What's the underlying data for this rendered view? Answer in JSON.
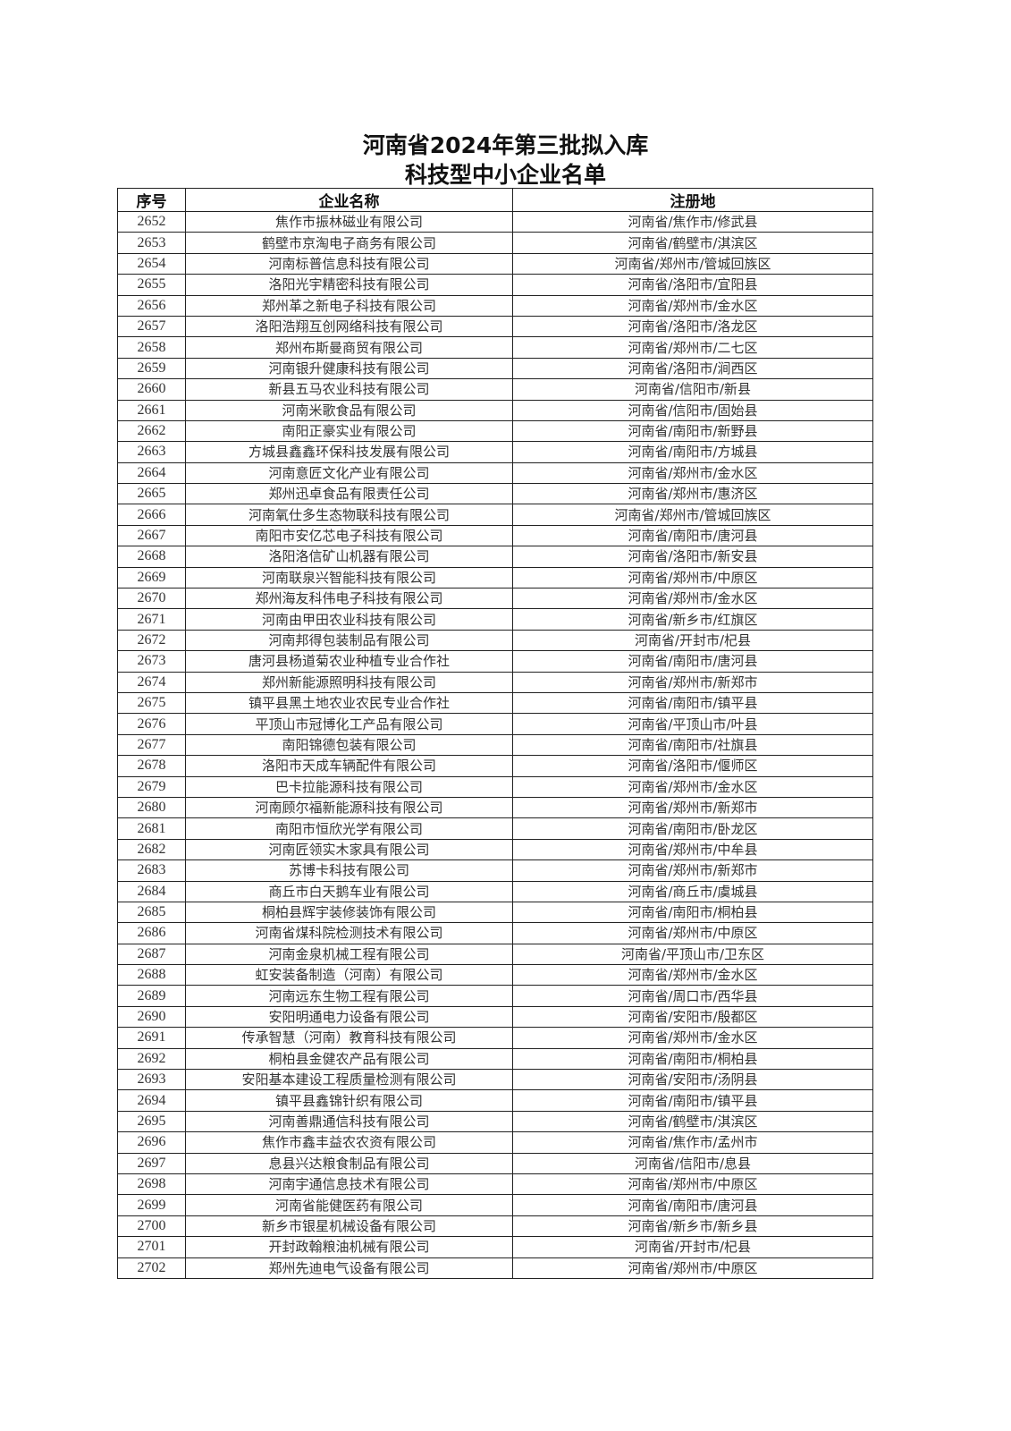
{
  "title": {
    "line1": "河南省2024年第三批拟入库",
    "line2": "科技型中小企业名单"
  },
  "table": {
    "headers": {
      "no": "序号",
      "name": "企业名称",
      "location": "注册地"
    },
    "rows": [
      {
        "no": "2652",
        "name": "焦作市振林磁业有限公司",
        "location": "河南省/焦作市/修武县"
      },
      {
        "no": "2653",
        "name": "鹤壁市京淘电子商务有限公司",
        "location": "河南省/鹤壁市/淇滨区"
      },
      {
        "no": "2654",
        "name": "河南标普信息科技有限公司",
        "location": "河南省/郑州市/管城回族区"
      },
      {
        "no": "2655",
        "name": "洛阳光宇精密科技有限公司",
        "location": "河南省/洛阳市/宜阳县"
      },
      {
        "no": "2656",
        "name": "郑州革之新电子科技有限公司",
        "location": "河南省/郑州市/金水区"
      },
      {
        "no": "2657",
        "name": "洛阳浩翔互创网络科技有限公司",
        "location": "河南省/洛阳市/洛龙区"
      },
      {
        "no": "2658",
        "name": "郑州布斯曼商贸有限公司",
        "location": "河南省/郑州市/二七区"
      },
      {
        "no": "2659",
        "name": "河南银升健康科技有限公司",
        "location": "河南省/洛阳市/涧西区"
      },
      {
        "no": "2660",
        "name": "新县五马农业科技有限公司",
        "location": "河南省/信阳市/新县"
      },
      {
        "no": "2661",
        "name": "河南米歌食品有限公司",
        "location": "河南省/信阳市/固始县"
      },
      {
        "no": "2662",
        "name": "南阳正豪实业有限公司",
        "location": "河南省/南阳市/新野县"
      },
      {
        "no": "2663",
        "name": "方城县鑫鑫环保科技发展有限公司",
        "location": "河南省/南阳市/方城县"
      },
      {
        "no": "2664",
        "name": "河南意匠文化产业有限公司",
        "location": "河南省/郑州市/金水区"
      },
      {
        "no": "2665",
        "name": "郑州迅卓食品有限责任公司",
        "location": "河南省/郑州市/惠济区"
      },
      {
        "no": "2666",
        "name": "河南氧仕多生态物联科技有限公司",
        "location": "河南省/郑州市/管城回族区"
      },
      {
        "no": "2667",
        "name": "南阳市安亿芯电子科技有限公司",
        "location": "河南省/南阳市/唐河县"
      },
      {
        "no": "2668",
        "name": "洛阳洛信矿山机器有限公司",
        "location": "河南省/洛阳市/新安县"
      },
      {
        "no": "2669",
        "name": "河南联泉兴智能科技有限公司",
        "location": "河南省/郑州市/中原区"
      },
      {
        "no": "2670",
        "name": "郑州海友科伟电子科技有限公司",
        "location": "河南省/郑州市/金水区"
      },
      {
        "no": "2671",
        "name": "河南由甲田农业科技有限公司",
        "location": "河南省/新乡市/红旗区"
      },
      {
        "no": "2672",
        "name": "河南邦得包装制品有限公司",
        "location": "河南省/开封市/杞县"
      },
      {
        "no": "2673",
        "name": "唐河县杨道菊农业种植专业合作社",
        "location": "河南省/南阳市/唐河县"
      },
      {
        "no": "2674",
        "name": "郑州新能源照明科技有限公司",
        "location": "河南省/郑州市/新郑市"
      },
      {
        "no": "2675",
        "name": "镇平县黑土地农业农民专业合作社",
        "location": "河南省/南阳市/镇平县"
      },
      {
        "no": "2676",
        "name": "平顶山市冠博化工产品有限公司",
        "location": "河南省/平顶山市/叶县"
      },
      {
        "no": "2677",
        "name": "南阳锦德包装有限公司",
        "location": "河南省/南阳市/社旗县"
      },
      {
        "no": "2678",
        "name": "洛阳市天成车辆配件有限公司",
        "location": "河南省/洛阳市/偃师区"
      },
      {
        "no": "2679",
        "name": "巴卡拉能源科技有限公司",
        "location": "河南省/郑州市/金水区"
      },
      {
        "no": "2680",
        "name": "河南顾尔福新能源科技有限公司",
        "location": "河南省/郑州市/新郑市"
      },
      {
        "no": "2681",
        "name": "南阳市恒欣光学有限公司",
        "location": "河南省/南阳市/卧龙区"
      },
      {
        "no": "2682",
        "name": "河南匠领实木家具有限公司",
        "location": "河南省/郑州市/中牟县"
      },
      {
        "no": "2683",
        "name": "苏博卡科技有限公司",
        "location": "河南省/郑州市/新郑市"
      },
      {
        "no": "2684",
        "name": "商丘市白天鹅车业有限公司",
        "location": "河南省/商丘市/虞城县"
      },
      {
        "no": "2685",
        "name": "桐柏县辉宇装修装饰有限公司",
        "location": "河南省/南阳市/桐柏县"
      },
      {
        "no": "2686",
        "name": "河南省煤科院检测技术有限公司",
        "location": "河南省/郑州市/中原区"
      },
      {
        "no": "2687",
        "name": "河南金泉机械工程有限公司",
        "location": "河南省/平顶山市/卫东区"
      },
      {
        "no": "2688",
        "name": "虹安装备制造（河南）有限公司",
        "location": "河南省/郑州市/金水区"
      },
      {
        "no": "2689",
        "name": "河南远东生物工程有限公司",
        "location": "河南省/周口市/西华县"
      },
      {
        "no": "2690",
        "name": "安阳明通电力设备有限公司",
        "location": "河南省/安阳市/殷都区"
      },
      {
        "no": "2691",
        "name": "传承智慧（河南）教育科技有限公司",
        "location": "河南省/郑州市/金水区"
      },
      {
        "no": "2692",
        "name": "桐柏县金健农产品有限公司",
        "location": "河南省/南阳市/桐柏县"
      },
      {
        "no": "2693",
        "name": "安阳基本建设工程质量检测有限公司",
        "location": "河南省/安阳市/汤阴县"
      },
      {
        "no": "2694",
        "name": "镇平县鑫锦针织有限公司",
        "location": "河南省/南阳市/镇平县"
      },
      {
        "no": "2695",
        "name": "河南善鼎通信科技有限公司",
        "location": "河南省/鹤壁市/淇滨区"
      },
      {
        "no": "2696",
        "name": "焦作市鑫丰益农农资有限公司",
        "location": "河南省/焦作市/孟州市"
      },
      {
        "no": "2697",
        "name": "息县兴达粮食制品有限公司",
        "location": "河南省/信阳市/息县"
      },
      {
        "no": "2698",
        "name": "河南宇通信息技术有限公司",
        "location": "河南省/郑州市/中原区"
      },
      {
        "no": "2699",
        "name": "河南省能健医药有限公司",
        "location": "河南省/南阳市/唐河县"
      },
      {
        "no": "2700",
        "name": "新乡市银星机械设备有限公司",
        "location": "河南省/新乡市/新乡县"
      },
      {
        "no": "2701",
        "name": "开封政翰粮油机械有限公司",
        "location": "河南省/开封市/杞县"
      },
      {
        "no": "2702",
        "name": "郑州先迪电气设备有限公司",
        "location": "河南省/郑州市/中原区"
      }
    ]
  }
}
